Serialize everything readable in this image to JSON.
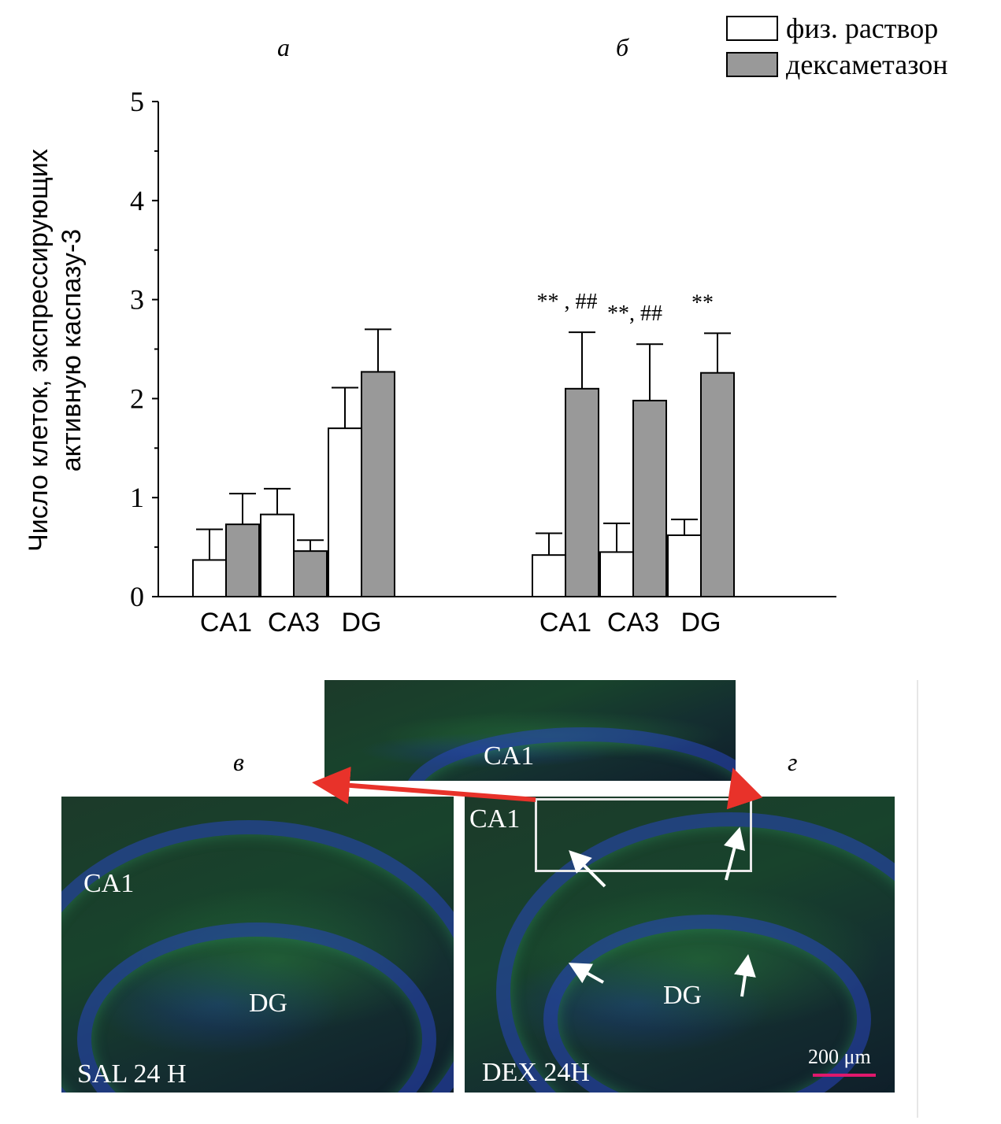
{
  "legend": {
    "saline_label": "физ. раствор",
    "dex_label": "дексаметазон",
    "saline_color": "#ffffff",
    "dex_color": "#999999"
  },
  "chart_data": {
    "type": "bar",
    "ylabel_line1": "Число клеток, экспрессирующих",
    "ylabel_line2": "активную каспазу-3",
    "ylim": [
      0,
      5
    ],
    "yticks": [
      "0",
      "1",
      "2",
      "3",
      "4",
      "5"
    ],
    "panels": [
      {
        "letter": "а",
        "categories": [
          "CA1",
          "CA3",
          "DG"
        ],
        "series": [
          {
            "name": "физ. раствор",
            "values": [
              0.37,
              0.83,
              1.7
            ],
            "errors": [
              0.31,
              0.26,
              0.41
            ]
          },
          {
            "name": "дексаметазон",
            "values": [
              0.73,
              0.46,
              2.27
            ],
            "errors": [
              0.31,
              0.11,
              0.43
            ]
          }
        ],
        "annotations": []
      },
      {
        "letter": "б",
        "categories": [
          "CA1",
          "CA3",
          "DG"
        ],
        "series": [
          {
            "name": "физ. раствор",
            "values": [
              0.42,
              0.45,
              0.62
            ],
            "errors": [
              0.22,
              0.29,
              0.16
            ]
          },
          {
            "name": "дексаметазон",
            "values": [
              2.1,
              1.98,
              2.26
            ],
            "errors": [
              0.57,
              0.57,
              0.4
            ]
          }
        ],
        "annotations": [
          "** , ##",
          "**, ##",
          "**"
        ]
      }
    ]
  },
  "micrographs": {
    "panel_v_letter": "в",
    "panel_g_letter": "г",
    "inset_label": "CA1",
    "left_ca1": "CA1",
    "left_dg": "DG",
    "left_caption": "SAL 24 H",
    "right_ca1": "CA1",
    "right_dg": "DG",
    "right_caption": "DEX 24H",
    "scale_label": "200 μm",
    "arrow_color": "#e8322a",
    "scale_color": "#e0186c"
  }
}
